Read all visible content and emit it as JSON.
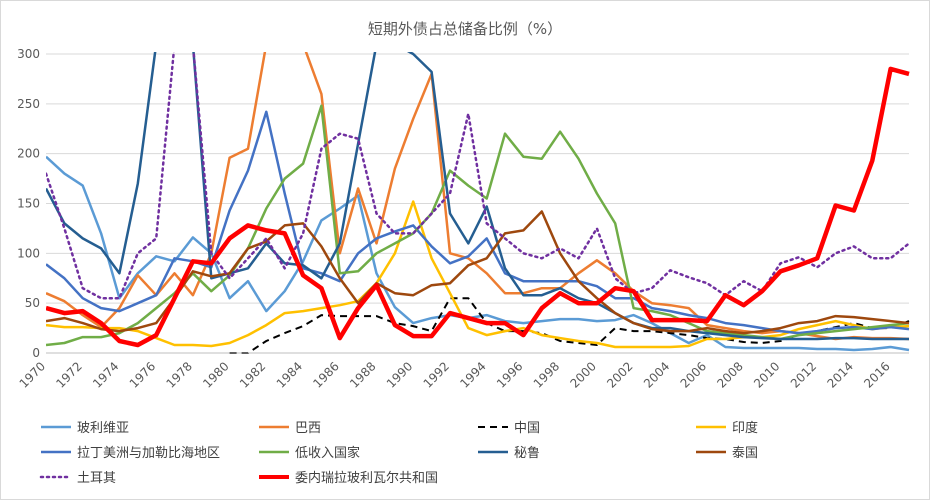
{
  "chart_data": {
    "type": "line",
    "title": "短期外债占总储备比例（%）",
    "xlabel": "",
    "ylabel": "",
    "ylim": [
      0,
      300
    ],
    "yticks": [
      0,
      50,
      100,
      150,
      200,
      250,
      300
    ],
    "xlim": [
      1970,
      2017
    ],
    "xticks": [
      1970,
      1972,
      1974,
      1976,
      1978,
      1980,
      1982,
      1984,
      1986,
      1988,
      1990,
      1992,
      1994,
      1996,
      1998,
      2000,
      2002,
      2004,
      2006,
      2008,
      2010,
      2012,
      2014,
      2016
    ],
    "grid": true,
    "legend_position": "bottom",
    "series": [
      {
        "name": "玻利维亚",
        "color": "#5B9BD5",
        "width": 2.5,
        "dash": "",
        "x": [
          1970,
          1971,
          1972,
          1973,
          1974,
          1975,
          1976,
          1977,
          1978,
          1979,
          1980,
          1981,
          1982,
          1983,
          1984,
          1985,
          1986,
          1987,
          1988,
          1989,
          1990,
          1991,
          1992,
          1993,
          1994,
          1995,
          1996,
          1997,
          1998,
          1999,
          2000,
          2001,
          2002,
          2003,
          2004,
          2005,
          2006,
          2007,
          2008,
          2009,
          2010,
          2011,
          2012,
          2013,
          2014,
          2015,
          2016,
          2017
        ],
        "y": [
          197,
          180,
          168,
          120,
          55,
          80,
          97,
          92,
          116,
          100,
          55,
          72,
          42,
          62,
          92,
          133,
          145,
          158,
          80,
          46,
          30,
          35,
          38,
          35,
          38,
          32,
          30,
          32,
          34,
          34,
          32,
          33,
          38,
          30,
          20,
          10,
          18,
          6,
          5,
          5,
          5,
          5,
          4,
          4,
          3,
          4,
          6,
          3
        ]
      },
      {
        "name": "巴西",
        "color": "#ED7D31",
        "width": 2.5,
        "dash": "",
        "x": [
          1970,
          1971,
          1972,
          1973,
          1974,
          1975,
          1976,
          1977,
          1978,
          1979,
          1980,
          1981,
          1982,
          1983,
          1984,
          1985,
          1986,
          1987,
          1988,
          1989,
          1990,
          1991,
          1992,
          1993,
          1994,
          1995,
          1996,
          1997,
          1998,
          1999,
          2000,
          2001,
          2002,
          2003,
          2004,
          2005,
          2006,
          2007,
          2008,
          2009,
          2010,
          2011,
          2012,
          2013,
          2014,
          2015,
          2016,
          2017
        ],
        "y": [
          60,
          52,
          38,
          26,
          45,
          78,
          58,
          80,
          58,
          100,
          196,
          205,
          310,
          310,
          310,
          260,
          100,
          165,
          110,
          185,
          235,
          280,
          100,
          95,
          80,
          60,
          60,
          65,
          65,
          80,
          93,
          80,
          62,
          50,
          48,
          45,
          28,
          25,
          22,
          20,
          22,
          20,
          17,
          14,
          16,
          15,
          15,
          14
        ]
      },
      {
        "name": "中国",
        "color": "#000000",
        "width": 2,
        "dash": "7,5",
        "x": [
          1980,
          1981,
          1982,
          1983,
          1984,
          1985,
          1986,
          1987,
          1988,
          1989,
          1990,
          1991,
          1992,
          1993,
          1994,
          1995,
          1996,
          1997,
          1998,
          1999,
          2000,
          2001,
          2002,
          2003,
          2004,
          2005,
          2006,
          2007,
          2008,
          2009,
          2010,
          2011,
          2012,
          2013,
          2014,
          2015,
          2016,
          2017
        ],
        "y": [
          0,
          0,
          12,
          20,
          27,
          38,
          37,
          37,
          37,
          30,
          27,
          22,
          55,
          55,
          30,
          22,
          22,
          20,
          12,
          10,
          8,
          25,
          22,
          22,
          20,
          18,
          15,
          14,
          11,
          10,
          12,
          18,
          22,
          26,
          30,
          25,
          25,
          32
        ]
      },
      {
        "name": "印度",
        "color": "#FFC000",
        "width": 2.5,
        "dash": "",
        "x": [
          1970,
          1971,
          1972,
          1973,
          1974,
          1975,
          1976,
          1977,
          1978,
          1979,
          1980,
          1981,
          1982,
          1983,
          1984,
          1985,
          1986,
          1987,
          1988,
          1989,
          1990,
          1991,
          1992,
          1993,
          1994,
          1995,
          1996,
          1997,
          1998,
          1999,
          2000,
          2001,
          2002,
          2003,
          2004,
          2005,
          2006,
          2007,
          2008,
          2009,
          2010,
          2011,
          2012,
          2013,
          2014,
          2015,
          2016,
          2017
        ],
        "y": [
          28,
          26,
          26,
          25,
          25,
          22,
          15,
          8,
          8,
          7,
          10,
          18,
          28,
          40,
          42,
          45,
          48,
          52,
          70,
          100,
          152,
          95,
          60,
          25,
          18,
          22,
          25,
          18,
          15,
          12,
          10,
          6,
          6,
          6,
          6,
          7,
          14,
          14,
          16,
          16,
          18,
          24,
          28,
          32,
          28,
          24,
          26,
          27
        ]
      },
      {
        "name": "拉丁美洲与加勒比海地区",
        "color": "#4472C4",
        "width": 2.5,
        "dash": "",
        "x": [
          1970,
          1971,
          1972,
          1973,
          1974,
          1975,
          1976,
          1977,
          1978,
          1979,
          1980,
          1981,
          1982,
          1983,
          1984,
          1985,
          1986,
          1987,
          1988,
          1989,
          1990,
          1991,
          1992,
          1993,
          1994,
          1995,
          1996,
          1997,
          1998,
          1999,
          2000,
          2001,
          2002,
          2003,
          2004,
          2005,
          2006,
          2007,
          2008,
          2009,
          2010,
          2011,
          2012,
          2013,
          2014,
          2015,
          2016,
          2017
        ],
        "y": [
          89,
          75,
          55,
          45,
          42,
          50,
          58,
          95,
          92,
          86,
          143,
          183,
          242,
          160,
          85,
          80,
          72,
          100,
          115,
          122,
          128,
          107,
          90,
          97,
          115,
          80,
          72,
          72,
          72,
          72,
          67,
          55,
          55,
          45,
          42,
          38,
          35,
          30,
          28,
          25,
          22,
          20,
          22,
          25,
          26,
          24,
          26,
          24
        ]
      },
      {
        "name": "低收入国家",
        "color": "#70AD47",
        "width": 2.5,
        "dash": "",
        "x": [
          1970,
          1971,
          1972,
          1973,
          1974,
          1975,
          1976,
          1977,
          1978,
          1979,
          1980,
          1981,
          1982,
          1983,
          1984,
          1985,
          1986,
          1987,
          1988,
          1989,
          1990,
          1991,
          1992,
          1993,
          1994,
          1995,
          1996,
          1997,
          1998,
          1999,
          2000,
          2001,
          2002,
          2003,
          2004,
          2005,
          2006,
          2007,
          2008,
          2009,
          2010,
          2011,
          2012,
          2013,
          2014,
          2015,
          2016,
          2017
        ],
        "y": [
          8,
          10,
          16,
          16,
          20,
          30,
          45,
          60,
          80,
          62,
          78,
          105,
          145,
          175,
          190,
          248,
          80,
          82,
          100,
          110,
          120,
          140,
          183,
          168,
          155,
          220,
          197,
          195,
          222,
          195,
          160,
          130,
          45,
          42,
          38,
          30,
          22,
          20,
          18,
          16,
          14,
          18,
          20,
          22,
          24,
          26,
          28,
          30
        ]
      },
      {
        "name": "秘鲁",
        "color": "#255E91",
        "width": 2.5,
        "dash": "",
        "x": [
          1970,
          1971,
          1972,
          1973,
          1974,
          1975,
          1976,
          1977,
          1978,
          1979,
          1980,
          1981,
          1982,
          1983,
          1984,
          1985,
          1986,
          1987,
          1988,
          1989,
          1990,
          1991,
          1992,
          1993,
          1994,
          1995,
          1996,
          1997,
          1998,
          1999,
          2000,
          2001,
          2002,
          2003,
          2004,
          2005,
          2006,
          2007,
          2008,
          2009,
          2010,
          2011,
          2012,
          2013,
          2014,
          2015,
          2016,
          2017
        ],
        "y": [
          165,
          130,
          115,
          105,
          80,
          170,
          310,
          310,
          310,
          75,
          80,
          85,
          110,
          90,
          88,
          75,
          110,
          210,
          310,
          310,
          300,
          282,
          140,
          110,
          147,
          85,
          58,
          58,
          65,
          55,
          50,
          40,
          30,
          25,
          25,
          22,
          20,
          18,
          16,
          15,
          14,
          14,
          14,
          15,
          15,
          14,
          14,
          14
        ]
      },
      {
        "name": "泰国",
        "color": "#9E480E",
        "width": 2.5,
        "dash": "",
        "x": [
          1970,
          1971,
          1972,
          1973,
          1974,
          1975,
          1976,
          1977,
          1978,
          1979,
          1980,
          1981,
          1982,
          1983,
          1984,
          1985,
          1986,
          1987,
          1988,
          1989,
          1990,
          1991,
          1992,
          1993,
          1994,
          1995,
          1996,
          1997,
          1998,
          1999,
          2000,
          2001,
          2002,
          2003,
          2004,
          2005,
          2006,
          2007,
          2008,
          2009,
          2010,
          2011,
          2012,
          2013,
          2014,
          2015,
          2016,
          2017
        ],
        "y": [
          32,
          35,
          30,
          24,
          22,
          25,
          30,
          55,
          82,
          77,
          80,
          105,
          112,
          128,
          130,
          107,
          75,
          50,
          70,
          60,
          58,
          68,
          70,
          88,
          95,
          120,
          123,
          142,
          100,
          72,
          55,
          40,
          30,
          24,
          22,
          22,
          25,
          22,
          20,
          22,
          25,
          30,
          32,
          37,
          36,
          34,
          32,
          30
        ]
      },
      {
        "name": "土耳其",
        "color": "#7030A0",
        "width": 2.5,
        "dash": "2,4",
        "x": [
          1970,
          1971,
          1972,
          1973,
          1974,
          1975,
          1976,
          1977,
          1978,
          1979,
          1980,
          1981,
          1982,
          1983,
          1984,
          1985,
          1986,
          1987,
          1988,
          1989,
          1990,
          1991,
          1992,
          1993,
          1994,
          1995,
          1996,
          1997,
          1998,
          1999,
          2000,
          2001,
          2002,
          2003,
          2004,
          2005,
          2006,
          2007,
          2008,
          2009,
          2010,
          2011,
          2012,
          2013,
          2014,
          2015,
          2016,
          2017
        ],
        "y": [
          180,
          125,
          65,
          55,
          55,
          100,
          115,
          310,
          310,
          100,
          75,
          95,
          115,
          85,
          120,
          205,
          220,
          215,
          140,
          120,
          120,
          140,
          160,
          240,
          130,
          115,
          100,
          95,
          105,
          95,
          125,
          75,
          60,
          65,
          83,
          76,
          70,
          58,
          72,
          62,
          90,
          96,
          86,
          100,
          107,
          95,
          95,
          110
        ]
      },
      {
        "name": "委内瑞拉玻利瓦尔共和国",
        "color": "#FF0000",
        "width": 4.5,
        "dash": "",
        "x": [
          1970,
          1971,
          1972,
          1973,
          1974,
          1975,
          1976,
          1977,
          1978,
          1979,
          1980,
          1981,
          1982,
          1983,
          1984,
          1985,
          1986,
          1987,
          1988,
          1989,
          1990,
          1991,
          1992,
          1993,
          1994,
          1995,
          1996,
          1997,
          1998,
          1999,
          2000,
          2001,
          2002,
          2003,
          2004,
          2005,
          2006,
          2007,
          2008,
          2009,
          2010,
          2011,
          2012,
          2013,
          2014,
          2015,
          2016,
          2017
        ],
        "y": [
          45,
          40,
          42,
          30,
          12,
          8,
          18,
          55,
          92,
          90,
          115,
          128,
          123,
          120,
          78,
          65,
          15,
          45,
          68,
          28,
          17,
          17,
          40,
          35,
          30,
          30,
          18,
          45,
          60,
          50,
          50,
          65,
          62,
          33,
          33,
          33,
          32,
          58,
          48,
          62,
          82,
          88,
          95,
          148,
          143,
          193,
          285,
          280
        ]
      }
    ]
  }
}
